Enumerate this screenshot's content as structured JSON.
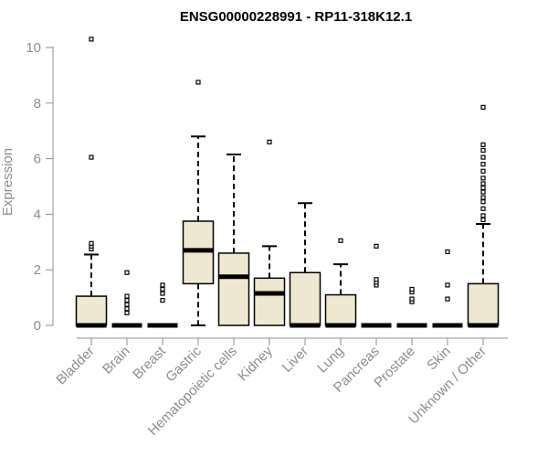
{
  "chart_data": {
    "type": "box",
    "title": "ENSG00000228991 - RP11-318K12.1",
    "xlabel": "",
    "ylabel": "Expression",
    "ylim": [
      0,
      10.5
    ],
    "yticks": [
      0,
      2,
      4,
      6,
      8,
      10
    ],
    "grid": false,
    "legend": "none",
    "colors": {
      "box_fill": "#efe8d0",
      "stroke": "#000000",
      "axis": "#8c8c8c"
    },
    "categories": [
      "Bladder",
      "Brain",
      "Breast",
      "Gastric",
      "Hematopoietic cells",
      "Kidney",
      "Liver",
      "Lung",
      "Pancreas",
      "Prostate",
      "Skin",
      "Unknown / Other"
    ],
    "boxes": [
      {
        "q1": 0,
        "median": 0,
        "q3": 1.05,
        "whisker_low": 0,
        "whisker_high": 2.55,
        "outliers": [
          2.75,
          2.85,
          2.95,
          6.05,
          10.3
        ]
      },
      {
        "q1": 0,
        "median": 0,
        "q3": 0,
        "whisker_low": 0,
        "whisker_high": 0,
        "outliers": [
          0.45,
          0.6,
          0.75,
          0.9,
          1.05,
          1.9
        ]
      },
      {
        "q1": 0,
        "median": 0,
        "q3": 0,
        "whisker_low": 0,
        "whisker_high": 0,
        "outliers": [
          0.9,
          1.15,
          1.3,
          1.45
        ]
      },
      {
        "q1": 1.5,
        "median": 2.7,
        "q3": 3.75,
        "whisker_low": 0,
        "whisker_high": 6.8,
        "outliers": [
          8.75
        ]
      },
      {
        "q1": 0,
        "median": 1.75,
        "q3": 2.6,
        "whisker_low": 0,
        "whisker_high": 6.15,
        "outliers": []
      },
      {
        "q1": 0,
        "median": 1.15,
        "q3": 1.7,
        "whisker_low": 0,
        "whisker_high": 2.85,
        "outliers": [
          6.6
        ]
      },
      {
        "q1": 0,
        "median": 0,
        "q3": 1.9,
        "whisker_low": 0,
        "whisker_high": 4.4,
        "outliers": []
      },
      {
        "q1": 0,
        "median": 0,
        "q3": 1.1,
        "whisker_low": 0,
        "whisker_high": 2.2,
        "outliers": [
          3.05
        ]
      },
      {
        "q1": 0,
        "median": 0,
        "q3": 0,
        "whisker_low": 0,
        "whisker_high": 0,
        "outliers": [
          1.45,
          1.55,
          1.65,
          2.85
        ]
      },
      {
        "q1": 0,
        "median": 0,
        "q3": 0,
        "whisker_low": 0,
        "whisker_high": 0,
        "outliers": [
          0.85,
          0.95,
          1.2,
          1.3
        ]
      },
      {
        "q1": 0,
        "median": 0,
        "q3": 0,
        "whisker_low": 0,
        "whisker_high": 0,
        "outliers": [
          0.95,
          1.45,
          2.65
        ]
      },
      {
        "q1": 0,
        "median": 0,
        "q3": 1.5,
        "whisker_low": 0,
        "whisker_high": 3.65,
        "outliers": [
          3.8,
          3.95,
          4.2,
          4.45,
          4.6,
          4.8,
          4.95,
          5.1,
          5.3,
          5.55,
          5.8,
          6.05,
          6.3,
          6.5,
          7.85
        ]
      }
    ]
  }
}
